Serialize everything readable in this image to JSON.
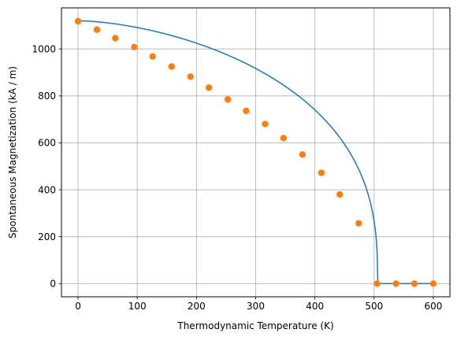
{
  "chart_data": {
    "type": "line",
    "title": "",
    "xlabel": "Thermodynamic Temperature (K)",
    "ylabel": "Spontaneous Magnetization (kA / m)",
    "xlim": [
      -28,
      628
    ],
    "ylim": [
      -56,
      1175
    ],
    "xticks": [
      0,
      100,
      200,
      300,
      400,
      500,
      600
    ],
    "yticks": [
      0,
      200,
      400,
      600,
      800,
      1000
    ],
    "grid": true,
    "legend": "none",
    "curve_model": {
      "saturation": 1120,
      "critical_temperature": 506,
      "exponent_a": 1.65,
      "exponent_b": 0.365
    },
    "series": [
      {
        "type": "line",
        "color": "#1f77b4",
        "x": [
          0,
          25,
          50,
          75,
          100,
          125,
          150,
          175,
          200,
          225,
          250,
          275,
          300,
          325,
          350,
          375,
          400,
          425,
          450,
          470,
          485,
          495,
          500,
          503,
          505,
          506,
          530,
          560,
          600
        ],
        "y": [
          1120,
          1114,
          1102,
          1085,
          1063,
          1038,
          1009,
          977,
          941,
          902,
          860,
          814,
          764,
          710,
          651,
          585,
          511,
          426,
          321,
          215,
          146,
          84,
          50,
          30,
          14,
          0,
          0,
          0,
          0
        ]
      },
      {
        "type": "scatter",
        "color": "#ff7f0e",
        "x": [
          0,
          32,
          63,
          95,
          126,
          158,
          190,
          221,
          253,
          284,
          316,
          347,
          379,
          411,
          442,
          474,
          505,
          537,
          568,
          600
        ],
        "y": [
          1118,
          1082,
          1046,
          1008,
          968,
          925,
          882,
          835,
          785,
          736,
          680,
          620,
          550,
          472,
          380,
          257,
          0,
          0,
          0,
          0
        ]
      }
    ]
  }
}
